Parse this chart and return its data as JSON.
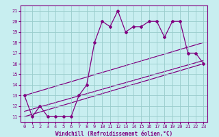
{
  "xlabel": "Windchill (Refroidissement éolien,°C)",
  "xlim": [
    -0.5,
    23.5
  ],
  "ylim": [
    10.5,
    21.5
  ],
  "xticks": [
    0,
    1,
    2,
    3,
    4,
    5,
    6,
    7,
    8,
    9,
    10,
    11,
    12,
    13,
    14,
    15,
    16,
    17,
    18,
    19,
    20,
    21,
    22,
    23
  ],
  "yticks": [
    11,
    12,
    13,
    14,
    15,
    16,
    17,
    18,
    19,
    20,
    21
  ],
  "bg_color": "#c8eef0",
  "line_color": "#800080",
  "grid_color": "#99cccc",
  "line1_x": [
    0,
    1,
    2,
    3,
    4,
    5,
    6,
    7,
    8,
    9,
    10,
    11,
    12,
    13,
    14,
    15,
    16,
    17,
    18,
    19,
    20,
    21,
    22,
    23
  ],
  "line1_y": [
    13,
    11,
    12,
    11,
    11,
    11,
    11,
    13,
    14,
    18,
    20,
    19.5,
    21,
    19,
    19.5,
    19.5,
    20,
    20,
    18.5,
    20,
    20,
    17,
    17,
    16
  ],
  "line2_x": [
    0,
    23
  ],
  "line2_y": [
    11,
    16
  ],
  "line3_x": [
    0,
    23
  ],
  "line3_y": [
    11.5,
    16.3
  ],
  "line4_x": [
    0,
    23
  ],
  "line4_y": [
    13,
    18
  ]
}
